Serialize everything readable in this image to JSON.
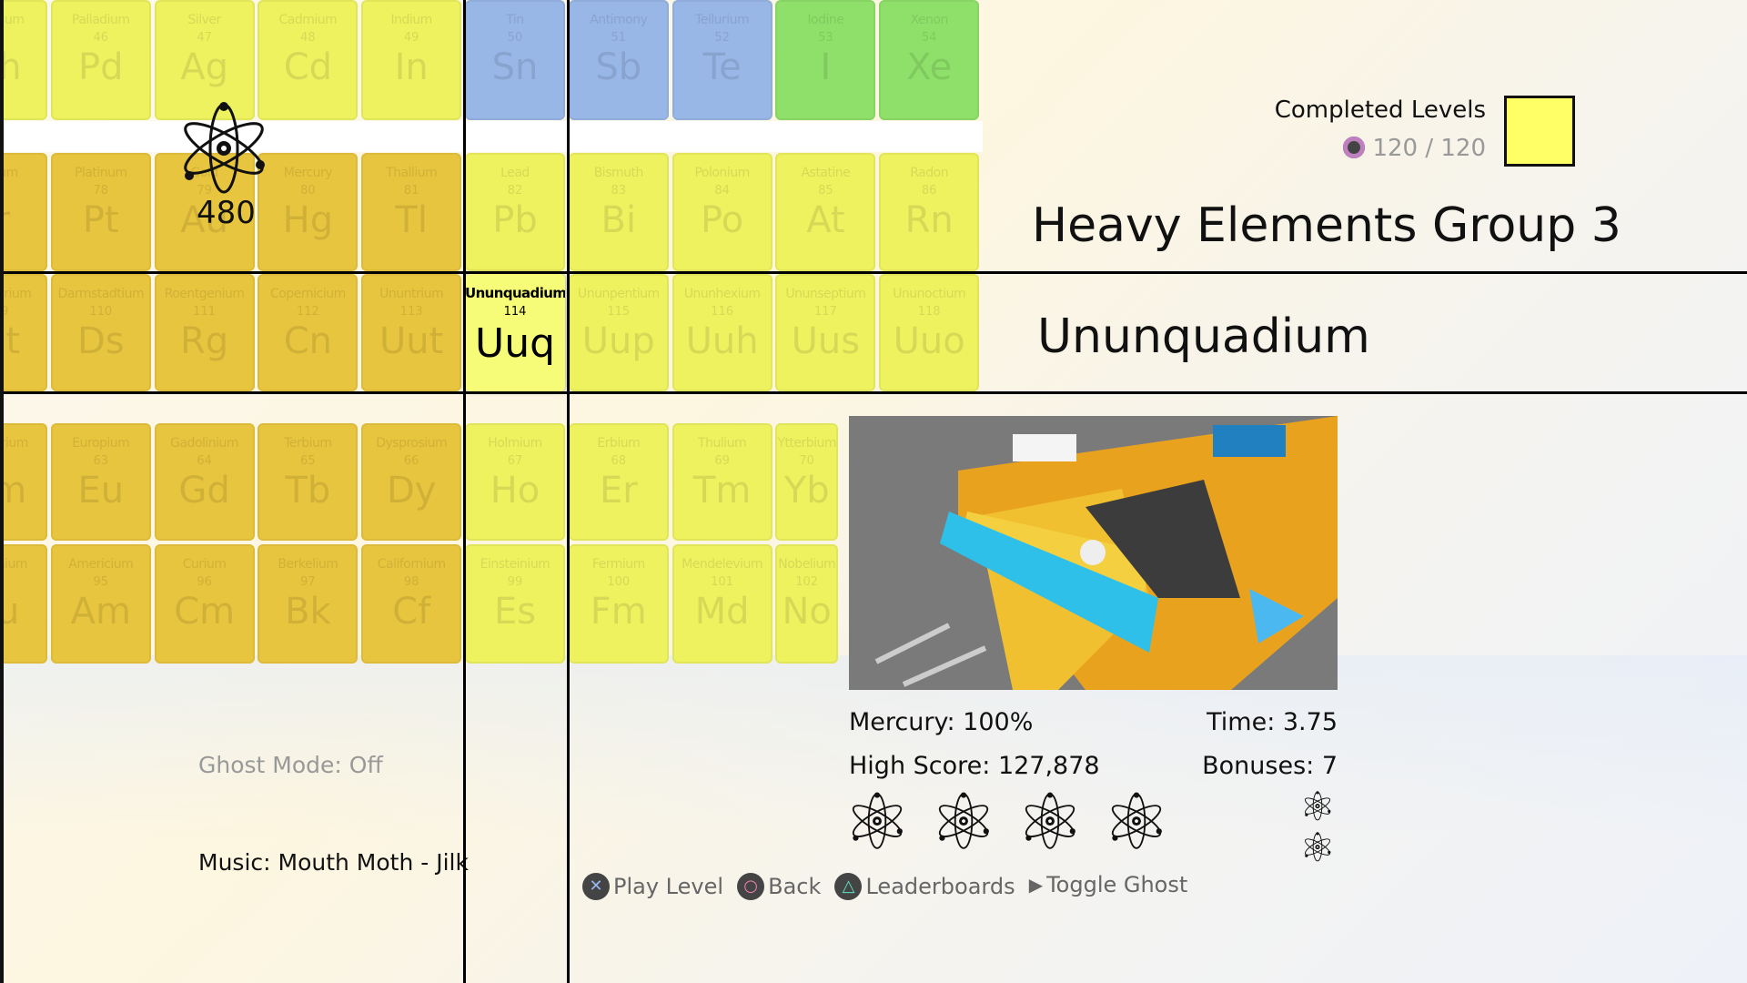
{
  "colors": {
    "yellow": "#eef25f",
    "gold": "#e8c53e",
    "blue": "#98b6e6",
    "green": "#8fe06a",
    "selected": "#f6fb78",
    "completed_swatch": "#ffff66"
  },
  "table_rows": [
    {
      "elements": [
        [
          "Rhodium",
          "45",
          "Rh",
          "yellow"
        ],
        [
          "Palladium",
          "46",
          "Pd",
          "yellow"
        ],
        [
          "Silver",
          "47",
          "Ag",
          "yellow"
        ],
        [
          "Cadmium",
          "48",
          "Cd",
          "yellow"
        ],
        [
          "Indium",
          "49",
          "In",
          "yellow"
        ],
        [
          "Tin",
          "50",
          "Sn",
          "blue"
        ],
        [
          "Antimony",
          "51",
          "Sb",
          "blue"
        ],
        [
          "Tellurium",
          "52",
          "Te",
          "blue"
        ],
        [
          "Iodine",
          "53",
          "I",
          "green"
        ],
        [
          "Xenon",
          "54",
          "Xe",
          "green"
        ]
      ]
    },
    {
      "elements": [
        [
          "Iridium",
          "77",
          "Ir",
          "gold"
        ],
        [
          "Platinum",
          "78",
          "Pt",
          "gold"
        ],
        [
          "Gold",
          "79",
          "Au",
          "gold"
        ],
        [
          "Mercury",
          "80",
          "Hg",
          "gold"
        ],
        [
          "Thallium",
          "81",
          "Tl",
          "gold"
        ],
        [
          "Lead",
          "82",
          "Pb",
          "yellow"
        ],
        [
          "Bismuth",
          "83",
          "Bi",
          "yellow"
        ],
        [
          "Polonium",
          "84",
          "Po",
          "yellow"
        ],
        [
          "Astatine",
          "85",
          "At",
          "yellow"
        ],
        [
          "Radon",
          "86",
          "Rn",
          "yellow"
        ]
      ]
    },
    {
      "elements": [
        [
          "Meitnerium",
          "109",
          "Mt",
          "gold"
        ],
        [
          "Darmstadtium",
          "110",
          "Ds",
          "gold"
        ],
        [
          "Roentgenium",
          "111",
          "Rg",
          "gold"
        ],
        [
          "Copernicium",
          "112",
          "Cn",
          "gold"
        ],
        [
          "Ununtrium",
          "113",
          "Uut",
          "gold"
        ],
        [
          "Ununquadium",
          "114",
          "Uuq",
          "selected"
        ],
        [
          "Ununpentium",
          "115",
          "Uup",
          "yellow"
        ],
        [
          "Ununhexium",
          "116",
          "Uuh",
          "yellow"
        ],
        [
          "Ununseptium",
          "117",
          "Uus",
          "yellow"
        ],
        [
          "Ununoctium",
          "118",
          "Uuo",
          "yellow"
        ]
      ]
    },
    {
      "elements": [
        [
          "Samarium",
          "62",
          "Sm",
          "gold"
        ],
        [
          "Europium",
          "63",
          "Eu",
          "gold"
        ],
        [
          "Gadolinium",
          "64",
          "Gd",
          "gold"
        ],
        [
          "Terbium",
          "65",
          "Tb",
          "gold"
        ],
        [
          "Dysprosium",
          "66",
          "Dy",
          "gold"
        ],
        [
          "Holmium",
          "67",
          "Ho",
          "yellow"
        ],
        [
          "Erbium",
          "68",
          "Er",
          "yellow"
        ],
        [
          "Thulium",
          "69",
          "Tm",
          "yellow"
        ],
        [
          "Ytterbium",
          "70",
          "Yb",
          "yellow"
        ]
      ]
    },
    {
      "elements": [
        [
          "Plutonium",
          "94",
          "Pu",
          "gold"
        ],
        [
          "Americium",
          "95",
          "Am",
          "gold"
        ],
        [
          "Curium",
          "96",
          "Cm",
          "gold"
        ],
        [
          "Berkelium",
          "97",
          "Bk",
          "gold"
        ],
        [
          "Californium",
          "98",
          "Cf",
          "gold"
        ],
        [
          "Einsteinium",
          "99",
          "Es",
          "yellow"
        ],
        [
          "Fermium",
          "100",
          "Fm",
          "yellow"
        ],
        [
          "Mendelevium",
          "101",
          "Md",
          "yellow"
        ],
        [
          "Nobelium",
          "102",
          "No",
          "yellow"
        ]
      ]
    }
  ],
  "atom_counter": "480",
  "completed": {
    "label": "Completed Levels",
    "value": "120 / 120",
    "icon": "trophy-icon"
  },
  "group_title": "Heavy Elements Group 3",
  "element_title": "Ununquadium",
  "stats": {
    "mercury": "Mercury: 100%",
    "time": "Time: 3.75",
    "high_score": "High Score: 127,878",
    "bonuses": "Bonuses: 7",
    "atoms_earned": 4,
    "bonus_atoms": 2
  },
  "ghost_mode": "Ghost Mode: Off",
  "music": "Music: Mouth Moth - Jilk",
  "buttons": {
    "play": "Play Level",
    "back": "Back",
    "leaderboards": "Leaderboards",
    "toggle_ghost": "Toggle Ghost"
  }
}
